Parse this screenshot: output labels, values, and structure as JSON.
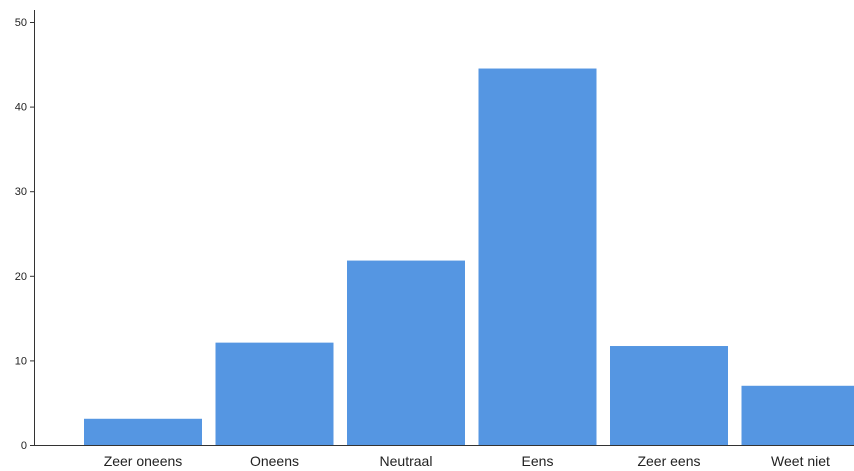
{
  "chart_data": {
    "type": "bar",
    "categories": [
      "Zeer oneens",
      "Oneens",
      "Neutraal",
      "Eens",
      "Zeer eens",
      "Weet niet"
    ],
    "values": [
      3.1,
      12.1,
      21.8,
      44.5,
      11.7,
      7.0
    ],
    "ylim": [
      0,
      50
    ],
    "yticks": [
      0,
      10,
      20,
      30,
      40,
      50
    ],
    "grid": false,
    "bar_color": "#5596e2",
    "axis_color": "#333333",
    "title": "",
    "xlabel": "",
    "ylabel": ""
  }
}
